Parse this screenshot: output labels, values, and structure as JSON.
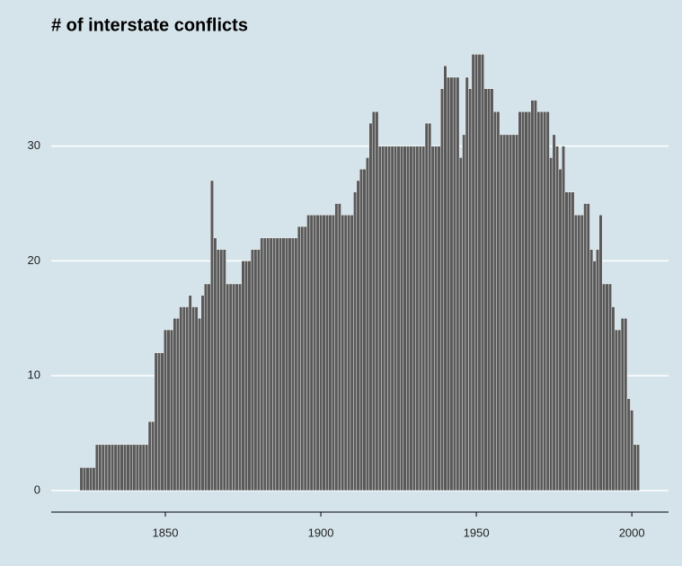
{
  "chart_data": {
    "type": "bar",
    "title": "# of interstate conflicts",
    "x": [
      1823,
      1824,
      1825,
      1826,
      1827,
      1828,
      1829,
      1830,
      1831,
      1832,
      1833,
      1834,
      1835,
      1836,
      1837,
      1838,
      1839,
      1840,
      1841,
      1842,
      1843,
      1844,
      1845,
      1846,
      1847,
      1848,
      1849,
      1850,
      1851,
      1852,
      1853,
      1854,
      1855,
      1856,
      1857,
      1858,
      1859,
      1860,
      1861,
      1862,
      1863,
      1864,
      1865,
      1866,
      1867,
      1868,
      1869,
      1870,
      1871,
      1872,
      1873,
      1874,
      1875,
      1876,
      1877,
      1878,
      1879,
      1880,
      1881,
      1882,
      1883,
      1884,
      1885,
      1886,
      1887,
      1888,
      1889,
      1890,
      1891,
      1892,
      1893,
      1894,
      1895,
      1896,
      1897,
      1898,
      1899,
      1900,
      1901,
      1902,
      1903,
      1904,
      1905,
      1906,
      1907,
      1908,
      1909,
      1910,
      1911,
      1912,
      1913,
      1914,
      1915,
      1916,
      1917,
      1918,
      1919,
      1920,
      1921,
      1922,
      1923,
      1924,
      1925,
      1926,
      1927,
      1928,
      1929,
      1930,
      1931,
      1932,
      1933,
      1934,
      1935,
      1936,
      1937,
      1938,
      1939,
      1940,
      1941,
      1942,
      1943,
      1944,
      1945,
      1946,
      1947,
      1948,
      1949,
      1950,
      1951,
      1952,
      1953,
      1954,
      1955,
      1956,
      1957,
      1958,
      1959,
      1960,
      1961,
      1962,
      1963,
      1964,
      1965,
      1966,
      1967,
      1968,
      1969,
      1970,
      1971,
      1972,
      1973,
      1974,
      1975,
      1976,
      1977,
      1978,
      1979,
      1980,
      1981,
      1982,
      1983,
      1984,
      1985,
      1986,
      1987,
      1988,
      1989,
      1990,
      1991,
      1992,
      1993,
      1994,
      1995,
      1996,
      1997,
      1998,
      1999,
      2000,
      2001,
      2002
    ],
    "values": [
      2,
      2,
      2,
      2,
      2,
      4,
      4,
      4,
      4,
      4,
      4,
      4,
      4,
      4,
      4,
      4,
      4,
      4,
      4,
      4,
      4,
      4,
      6,
      6,
      12,
      12,
      12,
      14,
      14,
      14,
      15,
      15,
      16,
      16,
      16,
      17,
      16,
      16,
      15,
      17,
      18,
      18,
      27,
      22,
      21,
      21,
      21,
      18,
      18,
      18,
      18,
      18,
      20,
      20,
      20,
      21,
      21,
      21,
      22,
      22,
      22,
      22,
      22,
      22,
      22,
      22,
      22,
      22,
      22,
      22,
      23,
      23,
      23,
      24,
      24,
      24,
      24,
      24,
      24,
      24,
      24,
      24,
      25,
      25,
      24,
      24,
      24,
      24,
      26,
      27,
      28,
      28,
      29,
      32,
      33,
      33,
      30,
      30,
      30,
      30,
      30,
      30,
      30,
      30,
      30,
      30,
      30,
      30,
      30,
      30,
      30,
      32,
      32,
      30,
      30,
      30,
      35,
      37,
      36,
      36,
      36,
      36,
      29,
      31,
      36,
      35,
      38,
      38,
      38,
      38,
      35,
      35,
      35,
      33,
      33,
      31,
      31,
      31,
      31,
      31,
      31,
      33,
      33,
      33,
      33,
      34,
      34,
      33,
      33,
      33,
      33,
      29,
      31,
      30,
      28,
      30,
      26,
      26,
      26,
      24,
      24,
      24,
      25,
      25,
      21,
      20,
      21,
      24,
      18,
      18,
      18,
      16,
      14,
      14,
      15,
      15,
      8,
      7,
      4,
      4
    ],
    "color": "#595959",
    "xlim": [
      1813.3,
      2011.8
    ],
    "xticks": [
      1850,
      1900,
      1950,
      2000
    ],
    "ylim": [
      -1.88,
      39.6
    ],
    "yticks": [
      0,
      10,
      20,
      30
    ],
    "grid": true
  }
}
